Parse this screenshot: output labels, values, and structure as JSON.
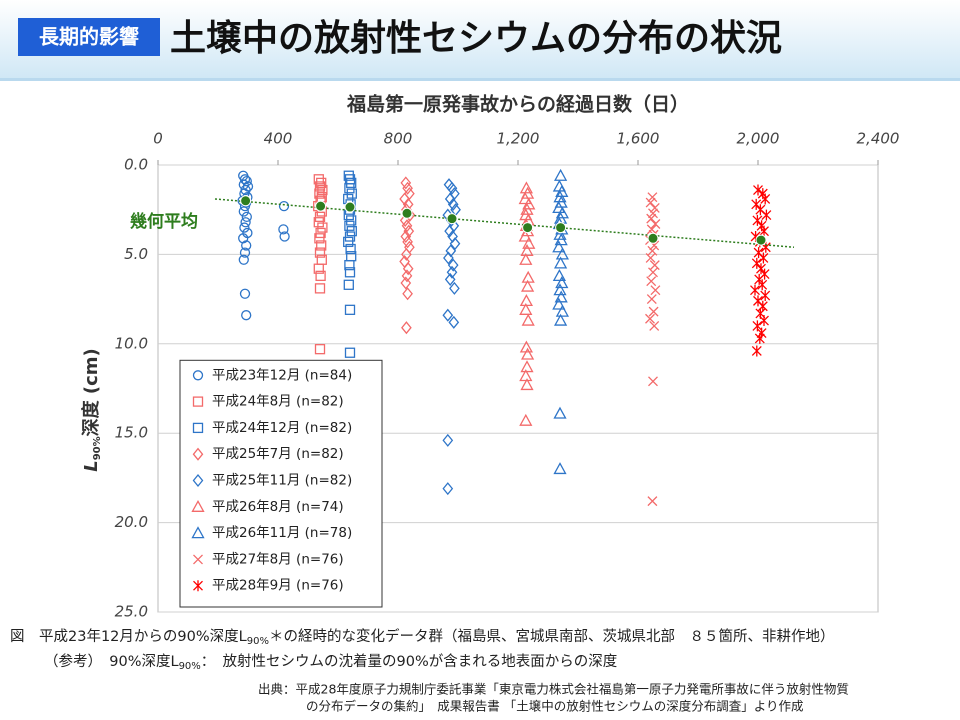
{
  "header": {
    "badge": "長期的影響",
    "title": "土壌中の放射性セシウムの分布の状況"
  },
  "chart_data": {
    "type": "scatter",
    "x_label": "福島第一原発事故からの経過日数（日）",
    "y_label": [
      "L",
      "90%",
      "深度 (cm)"
    ],
    "xlim": [
      0,
      2400
    ],
    "xticks": [
      0,
      400,
      800,
      {
        "value": 1200,
        "label": "1,200"
      },
      {
        "value": 1600,
        "label": "1,600"
      },
      {
        "value": 2000,
        "label": "2,000"
      },
      {
        "value": 2400,
        "label": "2,400"
      }
    ],
    "ylim": [
      0,
      25
    ],
    "y_inverted": true,
    "yticks": [
      {
        "value": 0,
        "label": "0.0"
      },
      {
        "value": 5,
        "label": "5.0"
      },
      {
        "value": 10,
        "label": "10.0"
      },
      {
        "value": 15,
        "label": "15.0"
      },
      {
        "value": 20,
        "label": "20.0"
      },
      {
        "value": 25,
        "label": "25.0"
      }
    ],
    "grid": true,
    "legend": "lower left",
    "series": [
      {
        "name": "平成23年12月 (n=84)",
        "color": "#2e75c8",
        "marker": "circle",
        "x": [
          284,
          290,
          296,
          286,
          300,
          292,
          288,
          298,
          282,
          294,
          290,
          286,
          296,
          292,
          288,
          298,
          284,
          294,
          290,
          286,
          290,
          294,
          420,
          418,
          422
        ],
        "y": [
          0.6,
          0.8,
          0.9,
          1.1,
          1.2,
          1.4,
          1.6,
          1.8,
          2.0,
          2.1,
          2.3,
          2.6,
          2.9,
          3.2,
          3.5,
          3.8,
          4.1,
          4.5,
          4.9,
          5.3,
          7.2,
          8.4,
          2.3,
          3.6,
          4.0
        ]
      },
      {
        "name": "平成24年8月 (n=82)",
        "color": "#f36a6a",
        "marker": "square",
        "x": [
          536,
          544,
          540,
          548,
          538,
          546,
          542,
          534,
          546,
          540,
          536,
          548,
          542,
          538,
          544,
          540,
          546,
          536,
          542,
          540,
          540
        ],
        "y": [
          0.8,
          1.0,
          1.2,
          1.4,
          1.6,
          1.8,
          2.0,
          2.3,
          2.6,
          2.9,
          3.2,
          3.5,
          3.8,
          4.1,
          4.5,
          4.9,
          5.3,
          5.8,
          6.2,
          6.9,
          10.3
        ]
      },
      {
        "name": "平成24年12月 (n=82)",
        "color": "#2e75c8",
        "marker": "square",
        "x": [
          636,
          640,
          644,
          638,
          646,
          634,
          642,
          640,
          636,
          644,
          638,
          646,
          640,
          634,
          642,
          644,
          638,
          640,
          636,
          640,
          640
        ],
        "y": [
          0.6,
          0.8,
          1.0,
          1.3,
          1.6,
          1.9,
          2.2,
          2.5,
          2.8,
          3.1,
          3.4,
          3.7,
          4.0,
          4.3,
          4.7,
          5.1,
          5.6,
          6.0,
          6.7,
          8.1,
          10.5
        ]
      },
      {
        "name": "平成25年7月 (n=82)",
        "color": "#f36a6a",
        "marker": "diamond",
        "x": [
          826,
          832,
          838,
          822,
          834,
          828,
          840,
          824,
          830,
          836,
          826,
          832,
          838,
          828,
          822,
          834,
          830,
          826,
          832,
          828
        ],
        "y": [
          1.0,
          1.3,
          1.6,
          1.9,
          2.2,
          2.5,
          2.8,
          3.1,
          3.4,
          3.7,
          4.0,
          4.3,
          4.6,
          5.0,
          5.4,
          5.8,
          6.2,
          6.6,
          7.2,
          9.1
        ]
      },
      {
        "name": "平成25年11月 (n=82)",
        "color": "#2e75c8",
        "marker": "diamond",
        "x": [
          970,
          980,
          988,
          974,
          984,
          992,
          966,
          978,
          986,
          972,
          982,
          990,
          976,
          968,
          984,
          980,
          974,
          988,
          966,
          986,
          966,
          966
        ],
        "y": [
          1.1,
          1.3,
          1.6,
          1.9,
          2.2,
          2.5,
          2.8,
          3.1,
          3.4,
          3.7,
          4.0,
          4.4,
          4.8,
          5.2,
          5.6,
          6.0,
          6.4,
          6.9,
          8.4,
          8.8,
          15.4,
          18.1
        ]
      },
      {
        "name": "平成26年8月 (n=74)",
        "color": "#f36a6a",
        "marker": "triangle",
        "x": [
          1228,
          1232,
          1224,
          1236,
          1230,
          1226,
          1234,
          1228,
          1232,
          1224,
          1236,
          1230,
          1226,
          1234,
          1232,
          1228,
          1226,
          1234,
          1228,
          1232,
          1230,
          1226,
          1230,
          1226
        ],
        "y": [
          1.3,
          1.6,
          1.9,
          2.2,
          2.5,
          2.8,
          3.1,
          3.4,
          3.7,
          4.0,
          4.4,
          4.8,
          5.3,
          6.3,
          6.8,
          7.6,
          8.1,
          8.7,
          10.2,
          10.6,
          11.3,
          11.8,
          12.3,
          14.3
        ]
      },
      {
        "name": "平成26年11月 (n=78)",
        "color": "#2e75c8",
        "marker": "triangle",
        "x": [
          1342,
          1338,
          1346,
          1340,
          1344,
          1336,
          1348,
          1342,
          1338,
          1346,
          1340,
          1344,
          1336,
          1348,
          1342,
          1338,
          1346,
          1340,
          1344,
          1336,
          1348,
          1342,
          1340,
          1340
        ],
        "y": [
          0.6,
          1.2,
          1.5,
          1.8,
          2.1,
          2.4,
          2.7,
          3.0,
          3.3,
          3.6,
          3.9,
          4.2,
          4.6,
          5.0,
          5.5,
          6.2,
          6.6,
          7.0,
          7.4,
          7.8,
          8.2,
          8.7,
          13.9,
          17.0
        ]
      },
      {
        "name": "平成27年8月 (n=76)",
        "color": "#f36a6a",
        "marker": "x",
        "x": [
          1648,
          1642,
          1656,
          1650,
          1644,
          1658,
          1646,
          1652,
          1640,
          1654,
          1648,
          1642,
          1656,
          1650,
          1644,
          1658,
          1646,
          1652,
          1640,
          1654,
          1650,
          1648
        ],
        "y": [
          1.8,
          2.1,
          2.4,
          2.7,
          3.0,
          3.3,
          3.6,
          3.9,
          4.2,
          4.5,
          4.8,
          5.2,
          5.6,
          6.0,
          6.5,
          7.0,
          7.5,
          8.2,
          8.6,
          9.0,
          12.1,
          18.8
        ]
      },
      {
        "name": "平成28年9月 (n=76)",
        "color": "#ff0000",
        "marker": "asterisk",
        "x": [
          2000,
          2016,
          2024,
          1994,
          2008,
          2028,
          1998,
          2012,
          2020,
          1992,
          2006,
          2026,
          2002,
          2018,
          1996,
          2010,
          2022,
          2004,
          2014,
          1990,
          2024,
          2000,
          2016,
          2008,
          2020,
          1998,
          2012,
          2006,
          1996
        ],
        "y": [
          1.4,
          1.6,
          1.9,
          2.2,
          2.5,
          2.8,
          3.1,
          3.4,
          3.7,
          4.0,
          4.3,
          4.6,
          4.9,
          5.2,
          5.5,
          5.8,
          6.1,
          6.4,
          6.7,
          7.0,
          7.3,
          7.6,
          7.9,
          8.3,
          8.7,
          9.0,
          9.4,
          9.7,
          10.4
        ]
      }
    ],
    "geometric_mean": {
      "label": "幾何平均",
      "color": "#2e7d1e",
      "x": [
        292,
        542,
        640,
        830,
        980,
        1232,
        1342,
        1650,
        2010
      ],
      "y": [
        2.0,
        2.3,
        2.35,
        2.7,
        3.0,
        3.5,
        3.5,
        4.1,
        4.2
      ],
      "trend_x": [
        190,
        2120
      ],
      "trend_y": [
        1.9,
        4.6
      ]
    }
  },
  "caption": [
    "図　平成23年12月からの90%深度L",
    "90%",
    "＊の経時的な変化データ群（福島県、宮城県南部、茨城県北部　８５箇所、非耕作地）"
  ],
  "note": [
    "（参考）　90%深度L",
    "90%",
    "：　放射性セシウムの沈着量の90%が含まれる地表面からの深度"
  ],
  "source": [
    "出典：平成28年度原子力規制庁委託事業「東京電力株式会社福島第一原子力発電所事故に伴う放射性物質",
    "の分布データの集約」　成果報告書 「土壌中の放射性セシウムの深度分布調査」より作成"
  ]
}
